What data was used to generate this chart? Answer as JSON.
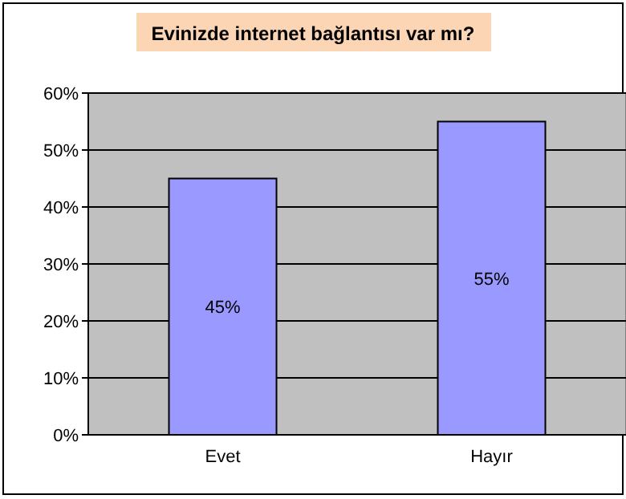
{
  "chart_data": {
    "type": "bar",
    "title": "Evinizde internet bağlantısı var mı?",
    "categories": [
      "Evet",
      "Hayır"
    ],
    "series": [
      {
        "color": "#9999ff",
        "values": [
          45,
          55
        ],
        "value_labels": [
          "45%",
          "55%"
        ]
      }
    ],
    "ylim": [
      0,
      60
    ],
    "yticks": [
      {
        "value": 0,
        "label": "0%"
      },
      {
        "value": 10,
        "label": "10%"
      },
      {
        "value": 20,
        "label": "20%"
      },
      {
        "value": 30,
        "label": "30%"
      },
      {
        "value": 40,
        "label": "40%"
      },
      {
        "value": 50,
        "label": "50%"
      },
      {
        "value": 60,
        "label": "60%"
      }
    ],
    "grid": "y"
  }
}
